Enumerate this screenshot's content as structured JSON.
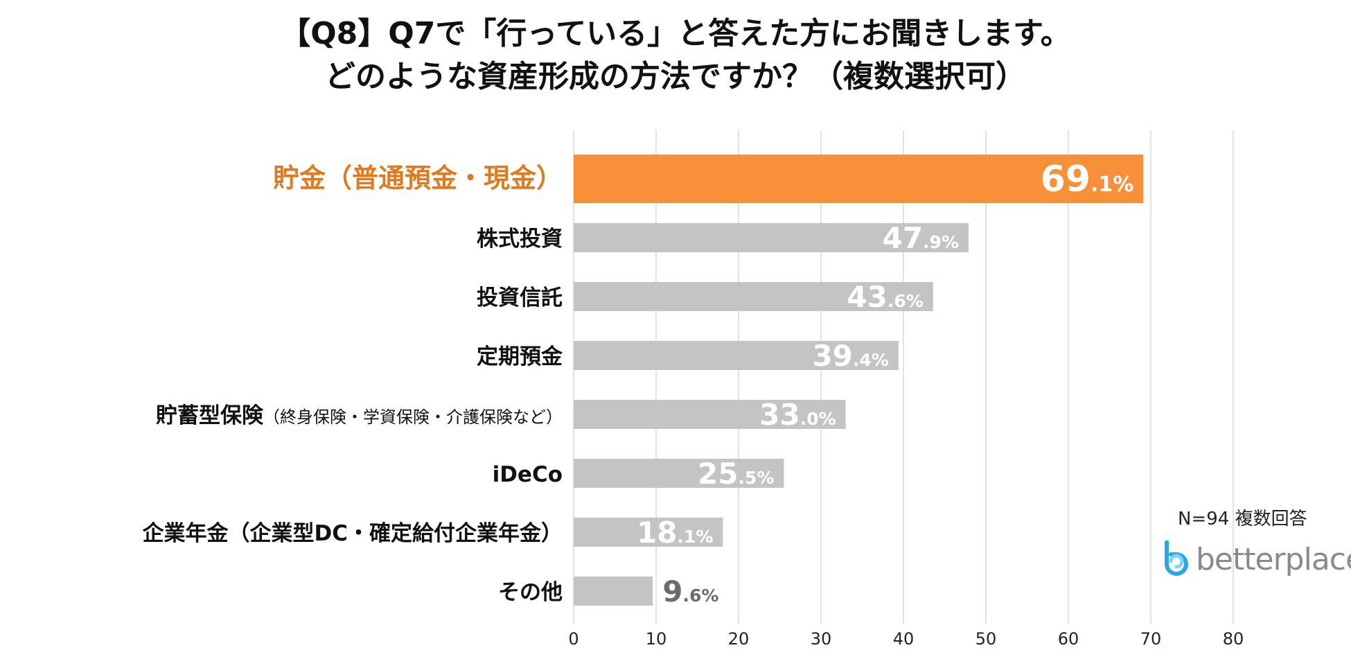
{
  "title": {
    "line1": "【Q8】Q7で「行っている」と答えた方にお聞きします。",
    "line2": "どのような資産形成の方法ですか？（複数選択可）"
  },
  "note": "N=94  複数回答",
  "logo": {
    "text": "betterplace",
    "color": "#2aa7e8"
  },
  "colors": {
    "highlight": "#f79038",
    "bar": "#c4c4c4",
    "highlight_label": "#e07a1f",
    "grid": "#d9d9d9"
  },
  "chart_data": {
    "type": "bar",
    "orientation": "horizontal",
    "title": "【Q8】Q7で「行っている」と答えた方にお聞きします。どのような資産形成の方法ですか？（複数選択可）",
    "categories": [
      {
        "main": "貯金（普通預金・現金）",
        "sub": "",
        "highlight": true
      },
      {
        "main": "株式投資",
        "sub": "",
        "highlight": false
      },
      {
        "main": "投資信託",
        "sub": "",
        "highlight": false
      },
      {
        "main": "定期預金",
        "sub": "",
        "highlight": false
      },
      {
        "main": "貯蓄型保険",
        "sub": "（終身保険・学資保険・介護保険など）",
        "highlight": false
      },
      {
        "main": "iDeCo",
        "sub": "",
        "highlight": false
      },
      {
        "main": "企業年金（企業型DC・確定給付企業年金）",
        "sub": "",
        "highlight": false
      },
      {
        "main": "その他",
        "sub": "",
        "highlight": false
      }
    ],
    "values": [
      69.1,
      47.9,
      43.6,
      39.4,
      33.0,
      25.5,
      18.1,
      9.6
    ],
    "value_labels": [
      {
        "int": "69",
        "dec": ".1%"
      },
      {
        "int": "47",
        "dec": ".9%"
      },
      {
        "int": "43",
        "dec": ".6%"
      },
      {
        "int": "39",
        "dec": ".4%"
      },
      {
        "int": "33",
        "dec": ".0%"
      },
      {
        "int": "25",
        "dec": ".5%"
      },
      {
        "int": "18",
        "dec": ".1%"
      },
      {
        "int": "9",
        "dec": ".6%"
      }
    ],
    "xlim": [
      0,
      80
    ],
    "xticks": [
      0,
      10,
      20,
      30,
      40,
      50,
      60,
      70,
      80
    ],
    "grid": true,
    "xlabel": "",
    "ylabel": ""
  }
}
